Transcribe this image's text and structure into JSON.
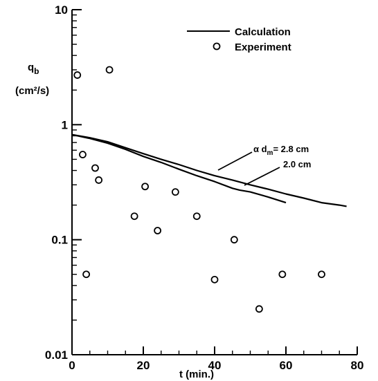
{
  "chart_data": {
    "type": "scatter",
    "title": "",
    "xlabel": "t  (min.)",
    "ylabel_main": "q",
    "ylabel_sub": "b",
    "ylabel_units": "(cm²/s)",
    "x_scale": "linear",
    "y_scale": "log",
    "xlim": [
      0,
      80
    ],
    "ylim": [
      0.01,
      10
    ],
    "x_ticks": [
      0,
      20,
      40,
      60,
      80
    ],
    "x_tick_labels": [
      "0",
      "20",
      "40",
      "60",
      "80"
    ],
    "y_ticks": [
      0.01,
      0.1,
      1,
      10
    ],
    "y_tick_labels": [
      "0.01",
      "0.1",
      "1",
      "10"
    ],
    "grid": false,
    "legend_position": "top-right",
    "legend": [
      {
        "label": "Calculation",
        "marker": "line"
      },
      {
        "label": "Experiment",
        "marker": "open-circle"
      }
    ],
    "series": [
      {
        "name": "Calculation",
        "type": "line",
        "curve_label": "α d",
        "curve_label_sub": "m",
        "curve_label_value": "= 2.8 cm",
        "x": [
          0,
          5,
          10,
          15,
          20,
          25,
          30,
          35,
          40,
          45,
          50,
          55,
          60,
          65,
          70,
          75,
          77
        ],
        "y": [
          0.82,
          0.77,
          0.71,
          0.63,
          0.56,
          0.5,
          0.45,
          0.4,
          0.36,
          0.33,
          0.3,
          0.275,
          0.25,
          0.23,
          0.21,
          0.2,
          0.195
        ]
      },
      {
        "name": "Calculation",
        "type": "line",
        "curve_label": "2.0 cm",
        "x": [
          0,
          5,
          10,
          15,
          20,
          25,
          30,
          35,
          40,
          45,
          47,
          50,
          55,
          60
        ],
        "y": [
          0.82,
          0.76,
          0.69,
          0.61,
          0.53,
          0.47,
          0.41,
          0.36,
          0.32,
          0.28,
          0.27,
          0.26,
          0.235,
          0.21
        ]
      },
      {
        "name": "Experiment",
        "type": "scatter",
        "x": [
          1.5,
          3,
          4,
          6.5,
          7.5,
          10.5,
          17.5,
          20.5,
          24,
          29,
          35,
          40,
          45.5,
          52.5,
          59,
          70
        ],
        "y": [
          2.7,
          0.55,
          0.05,
          0.42,
          0.33,
          3.0,
          0.16,
          0.29,
          0.12,
          0.26,
          0.16,
          0.045,
          0.1,
          0.025,
          0.05,
          0.05
        ]
      }
    ]
  }
}
